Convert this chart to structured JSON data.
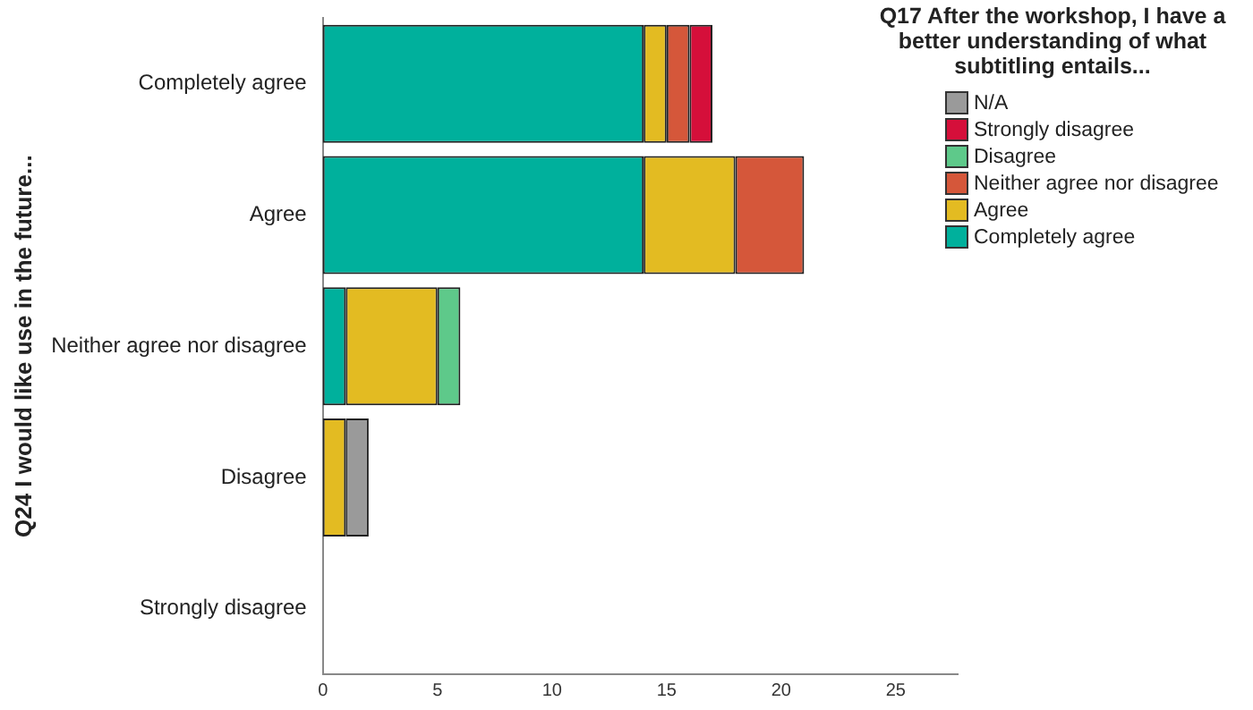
{
  "chart_data": {
    "type": "bar",
    "orientation": "horizontal",
    "stacked": true,
    "ylabel": "Q24 I would like use in the future...",
    "legend_title": "Q17 After the workshop, I have a better understanding of what subtitling entails...",
    "legend": "top right",
    "grid": false,
    "categories": [
      "Completely agree",
      "Agree",
      "Neither agree nor disagree",
      "Disagree",
      "Strongly disagree"
    ],
    "xlim": [
      0,
      27.7
    ],
    "xticks": [
      0,
      5,
      10,
      15,
      20,
      25
    ],
    "series": [
      {
        "name": "Completely agree",
        "color": "#00b09c",
        "values": [
          14,
          14,
          1,
          null,
          null
        ]
      },
      {
        "name": "Agree",
        "color": "#e3bb22",
        "values": [
          1,
          4,
          4,
          1,
          null
        ]
      },
      {
        "name": "Neither agree nor disagree",
        "color": "#d5573a",
        "values": [
          1,
          3,
          null,
          null,
          null
        ]
      },
      {
        "name": "Disagree",
        "color": "#5ec98a",
        "values": [
          null,
          null,
          1,
          null,
          null
        ]
      },
      {
        "name": "Strongly disagree",
        "color": "#d50f3a",
        "values": [
          1,
          null,
          null,
          null,
          null
        ]
      },
      {
        "name": "N/A",
        "color": "#9a9a9a",
        "values": [
          null,
          null,
          null,
          1,
          null
        ]
      }
    ]
  }
}
